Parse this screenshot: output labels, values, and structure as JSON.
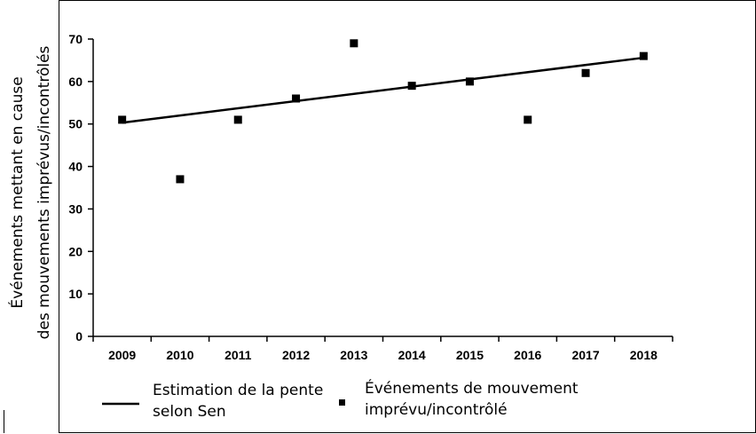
{
  "chart_data": {
    "type": "scatter",
    "title": "",
    "xlabel": "",
    "ylabel_lines": [
      "Événements mettant en cause",
      "des mouvements imprévus/incontrôlés"
    ],
    "categories": [
      "2009",
      "2010",
      "2011",
      "2012",
      "2013",
      "2014",
      "2015",
      "2016",
      "2017",
      "2018"
    ],
    "ylim": [
      0,
      70
    ],
    "yticks": [
      0,
      10,
      20,
      30,
      40,
      50,
      60,
      70
    ],
    "series": [
      {
        "name": "Événements de mouvement imprévu/incontrôlé",
        "legend_lines": [
          "Événements de mouvement",
          "imprévu/incontrôlé"
        ],
        "type": "scatter",
        "marker": "square",
        "color": "#000000",
        "values": [
          51,
          37,
          51,
          56,
          69,
          59,
          60,
          51,
          62,
          66
        ]
      },
      {
        "name": "Estimation de la pente selon Sen",
        "legend_lines": [
          "Estimation de la pente",
          "selon Sen"
        ],
        "type": "line",
        "color": "#000000",
        "values": [
          50.3,
          52.0,
          53.7,
          55.4,
          57.1,
          58.8,
          60.5,
          62.2,
          63.9,
          65.6
        ]
      }
    ],
    "grid": false,
    "legend_position": "bottom"
  }
}
